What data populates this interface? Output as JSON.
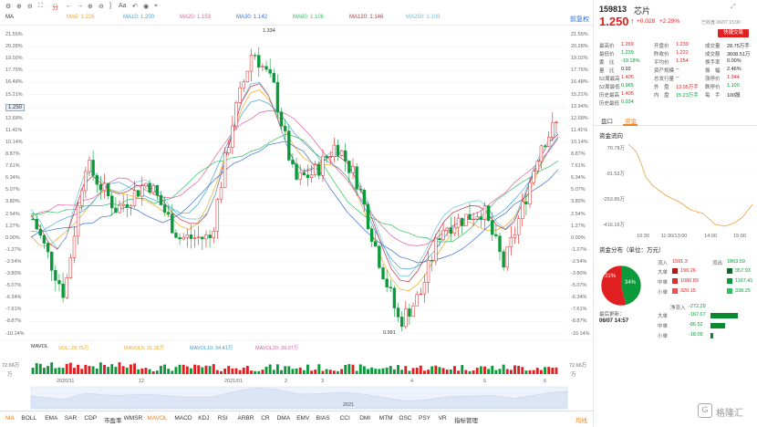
{
  "toolbar": {
    "icons": [
      "settings-icon",
      "zoom-in-icon",
      "zoom-out-icon",
      "fullscreen-icon",
      "left-arrow-icon",
      "right-arrow-icon",
      "text-icon",
      "undo-icon",
      "camera-icon",
      "pin-icon"
    ],
    "tf_label": "分",
    "ma_label": "MA",
    "right_button": "前复权"
  },
  "ma_legend": [
    {
      "label": "MA5: 1.226",
      "color": "#f5a623"
    },
    {
      "label": "MA10: 1.200",
      "color": "#3aa0e0"
    },
    {
      "label": "MA20: 1.153",
      "color": "#e060a0"
    },
    {
      "label": "MA30: 1.142",
      "color": "#3a70d0"
    },
    {
      "label": "MA60: 1.106",
      "color": "#30c060"
    },
    {
      "label": "MA120: 1.146",
      "color": "#c03040"
    },
    {
      "label": "MA250: 1.108",
      "color": "#6bc0e0"
    }
  ],
  "y_axis_left": [
    "21.55%",
    "20.28%",
    "19.02%",
    "17.75%",
    "16.48%",
    "15.21%",
    "13.94%",
    "12.68%",
    "11.41%",
    "10.14%",
    "8.87%",
    "7.61%",
    "6.34%",
    "5.07%",
    "3.80%",
    "2.54%",
    "1.27%",
    "0.00%",
    "-1.27%",
    "-2.54%",
    "-3.80%",
    "-5.07%",
    "-6.34%",
    "-7.61%",
    "-8.87%",
    "-10.14%"
  ],
  "y_axis_right": [
    "21.55%",
    "20.28%",
    "19.02%",
    "17.75%",
    "16.48%",
    "15.21%",
    "13.94%",
    "12.68%",
    "11.41%",
    "10.14%",
    "8.87%",
    "7.61%",
    "6.34%",
    "5.07%",
    "3.80%",
    "2.54%",
    "1.27%",
    "0.00%",
    "-1.27%",
    "-2.54%",
    "-3.80%",
    "-5.07%",
    "-6.34%",
    "-7.61%",
    "-8.87%",
    "-10.14%"
  ],
  "price_tag": "1.250",
  "high_label": "1.334",
  "low_label": "0.991",
  "volume_legend": [
    {
      "label": "MAVOL",
      "color": "#333"
    },
    {
      "label": "VOL: 28.75万",
      "color": "#f5a623"
    },
    {
      "label": "MAVOL5: 31.35万",
      "color": "#f5a623"
    },
    {
      "label": "MAVOL10: 34.41万",
      "color": "#3aa0e0"
    },
    {
      "label": "MAVOL20: 39.07万",
      "color": "#e060a0"
    }
  ],
  "volume_axis": {
    "top": "72.66万",
    "unit": "万"
  },
  "time_axis": [
    "2020/11",
    "12",
    "2021/01",
    "2",
    "3",
    "4",
    "5",
    "6"
  ],
  "timeline_year": "2021",
  "bottom_tabs": [
    "MA",
    "BOLL",
    "EMA",
    "SAR",
    "CDP",
    "市盈率",
    "WMSR",
    "MAVOL",
    "MACD",
    "KDJ",
    "RSI",
    "ARBR",
    "CR",
    "DMA",
    "EMV",
    "BIAS",
    "CCI",
    "DMI",
    "MTM",
    "OSC",
    "PSY",
    "VR",
    "指标管理"
  ],
  "bottom_right": "均线",
  "quote": {
    "code": "159813",
    "name": "芯片",
    "price": "1.250",
    "change": "+0.028",
    "change_pct": "+2.29%",
    "status": "已收盘 06/07 15:00",
    "trade_btn": "快捷交易"
  },
  "stats": [
    [
      "最高价",
      "1.269",
      "开盘价",
      "1.239",
      "成交量",
      "28.75万手"
    ],
    [
      "最低价",
      "1.239",
      "昨收价",
      "1.222",
      "成交额",
      "3608.51万"
    ],
    [
      "委　比",
      "-19.18%",
      "平均价",
      "1.254",
      "换手率",
      "0.00%"
    ],
    [
      "量　比",
      "0.92",
      "资产规模",
      "--",
      "振　幅",
      "2.46%"
    ],
    [
      "52周最高",
      "1.405",
      "总发行量",
      "--",
      "涨停价",
      "1.344"
    ],
    [
      "52周最低",
      "0.965",
      "外　盘",
      "13.05万手",
      "跌停价",
      "1.100"
    ],
    [
      "历史最高",
      "1.405",
      "内　盘",
      "15.23万手",
      "每　手",
      "100股"
    ],
    [
      "历史最低",
      "0.934",
      "",
      "",
      "",
      ""
    ]
  ],
  "panel_tabs": [
    "盘口",
    "资金"
  ],
  "flow_title": "资金流向",
  "flow_axis": [
    "70.78万",
    "-91.53万",
    "-253.85万",
    "-416.16万"
  ],
  "flow_time": [
    "10:30",
    "11:30/13:00",
    "14:00",
    "15:00"
  ],
  "dist_title": "资金分布（单位：万元）",
  "dist_header": [
    "流入",
    "1591.3",
    "流出",
    "1863.59"
  ],
  "dist_rows": [
    {
      "name": "大单",
      "in": "190.26",
      "out": "357.93"
    },
    {
      "name": "中单",
      "in": "1080.89",
      "out": "1167.41"
    },
    {
      "name": "小单",
      "in": "320.15",
      "out": "338.25"
    }
  ],
  "pie": {
    "red_pct": "31%",
    "green_pct": "34%",
    "in_share": 0.46,
    "out_share": 0.54
  },
  "update_label": "最后更新：",
  "update_time": "06/07 14:57",
  "net_label": "净流入",
  "net_total": "-272.29",
  "net_rows": [
    {
      "name": "大单",
      "value": "-167.67"
    },
    {
      "name": "中单",
      "value": "-86.52"
    },
    {
      "name": "小单",
      "value": "-18.09"
    }
  ],
  "watermark": "格隆汇",
  "colors": {
    "up": "#e02020",
    "down": "#0a9a3a",
    "accent": "#2a6fd6"
  }
}
